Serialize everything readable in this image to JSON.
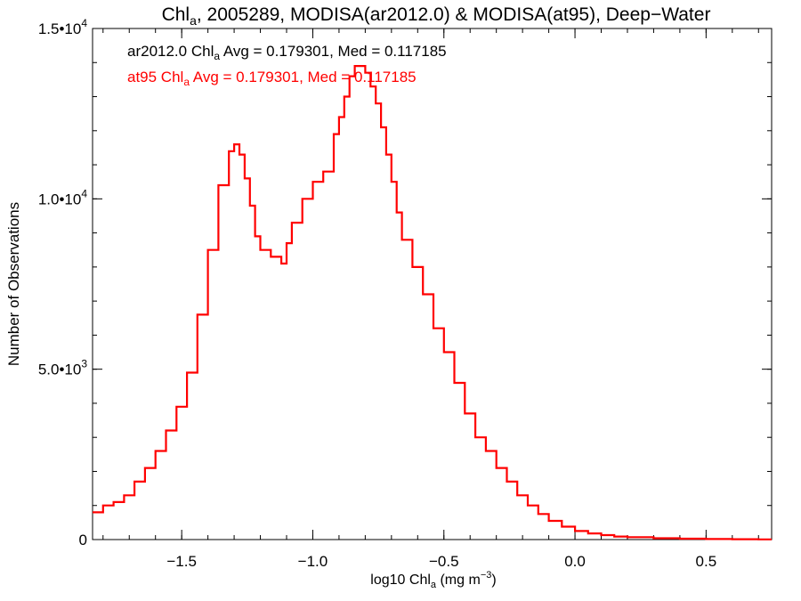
{
  "chart_data": {
    "type": "line",
    "title": {
      "main": "Chl",
      "sub": "a",
      "rest": ", 2005289, MODISA(ar2012.0) & MODISA(at95), Deep−Water"
    },
    "xlabel": {
      "main": "log10 Chl",
      "sub": "a",
      "rest": " (mg m",
      "sup": "−3",
      "close": ")"
    },
    "ylabel": "Number of Observations",
    "xlim": [
      -1.84,
      0.75
    ],
    "ylim": [
      0,
      15000
    ],
    "xticks": [
      {
        "value": -1.5,
        "label": "−1.5"
      },
      {
        "value": -1.0,
        "label": "−1.0"
      },
      {
        "value": -0.5,
        "label": "−0.5"
      },
      {
        "value": 0.0,
        "label": "0.0"
      },
      {
        "value": 0.5,
        "label": "0.5"
      }
    ],
    "yticks": [
      {
        "value": 0,
        "mantissa": "0",
        "exp": ""
      },
      {
        "value": 5000,
        "mantissa": "5.0•10",
        "exp": "3"
      },
      {
        "value": 10000,
        "mantissa": "1.0•10",
        "exp": "4"
      },
      {
        "value": 15000,
        "mantissa": "1.5•10",
        "exp": "4"
      }
    ],
    "annotations": [
      {
        "main": "ar2012.0 Chl",
        "sub": "a",
        "rest": " Avg = 0.179301, Med = 0.117185",
        "color": "#000000"
      },
      {
        "main": "at95 Chl",
        "sub": "a",
        "rest": " Avg = 0.179301, Med = 0.117185",
        "color": "#ff0000"
      }
    ],
    "series": [
      {
        "color": "#ff0000",
        "x": [
          -1.84,
          -1.8,
          -1.76,
          -1.72,
          -1.68,
          -1.64,
          -1.6,
          -1.56,
          -1.52,
          -1.48,
          -1.44,
          -1.4,
          -1.36,
          -1.32,
          -1.3,
          -1.28,
          -1.26,
          -1.24,
          -1.22,
          -1.2,
          -1.16,
          -1.12,
          -1.1,
          -1.08,
          -1.04,
          -1.0,
          -0.96,
          -0.92,
          -0.9,
          -0.88,
          -0.86,
          -0.84,
          -0.82,
          -0.8,
          -0.78,
          -0.76,
          -0.74,
          -0.72,
          -0.7,
          -0.68,
          -0.66,
          -0.62,
          -0.58,
          -0.54,
          -0.5,
          -0.46,
          -0.42,
          -0.38,
          -0.34,
          -0.3,
          -0.26,
          -0.22,
          -0.18,
          -0.14,
          -0.1,
          -0.05,
          0.0,
          0.05,
          0.1,
          0.15,
          0.2,
          0.3,
          0.4,
          0.5,
          0.6,
          0.7,
          0.75
        ],
        "values": [
          800,
          1000,
          1100,
          1300,
          1700,
          2100,
          2600,
          3200,
          3900,
          4900,
          6600,
          8500,
          10400,
          11400,
          11600,
          11300,
          10600,
          9800,
          8900,
          8500,
          8300,
          8100,
          8700,
          9300,
          10000,
          10500,
          10800,
          11900,
          12400,
          13000,
          13600,
          13900,
          13900,
          13700,
          13300,
          12800,
          12100,
          11300,
          10500,
          9600,
          8800,
          8000,
          7200,
          6200,
          5500,
          4600,
          3700,
          3000,
          2600,
          2100,
          1700,
          1300,
          1000,
          750,
          550,
          380,
          250,
          180,
          130,
          90,
          70,
          40,
          25,
          15,
          10,
          5,
          5
        ]
      }
    ]
  }
}
